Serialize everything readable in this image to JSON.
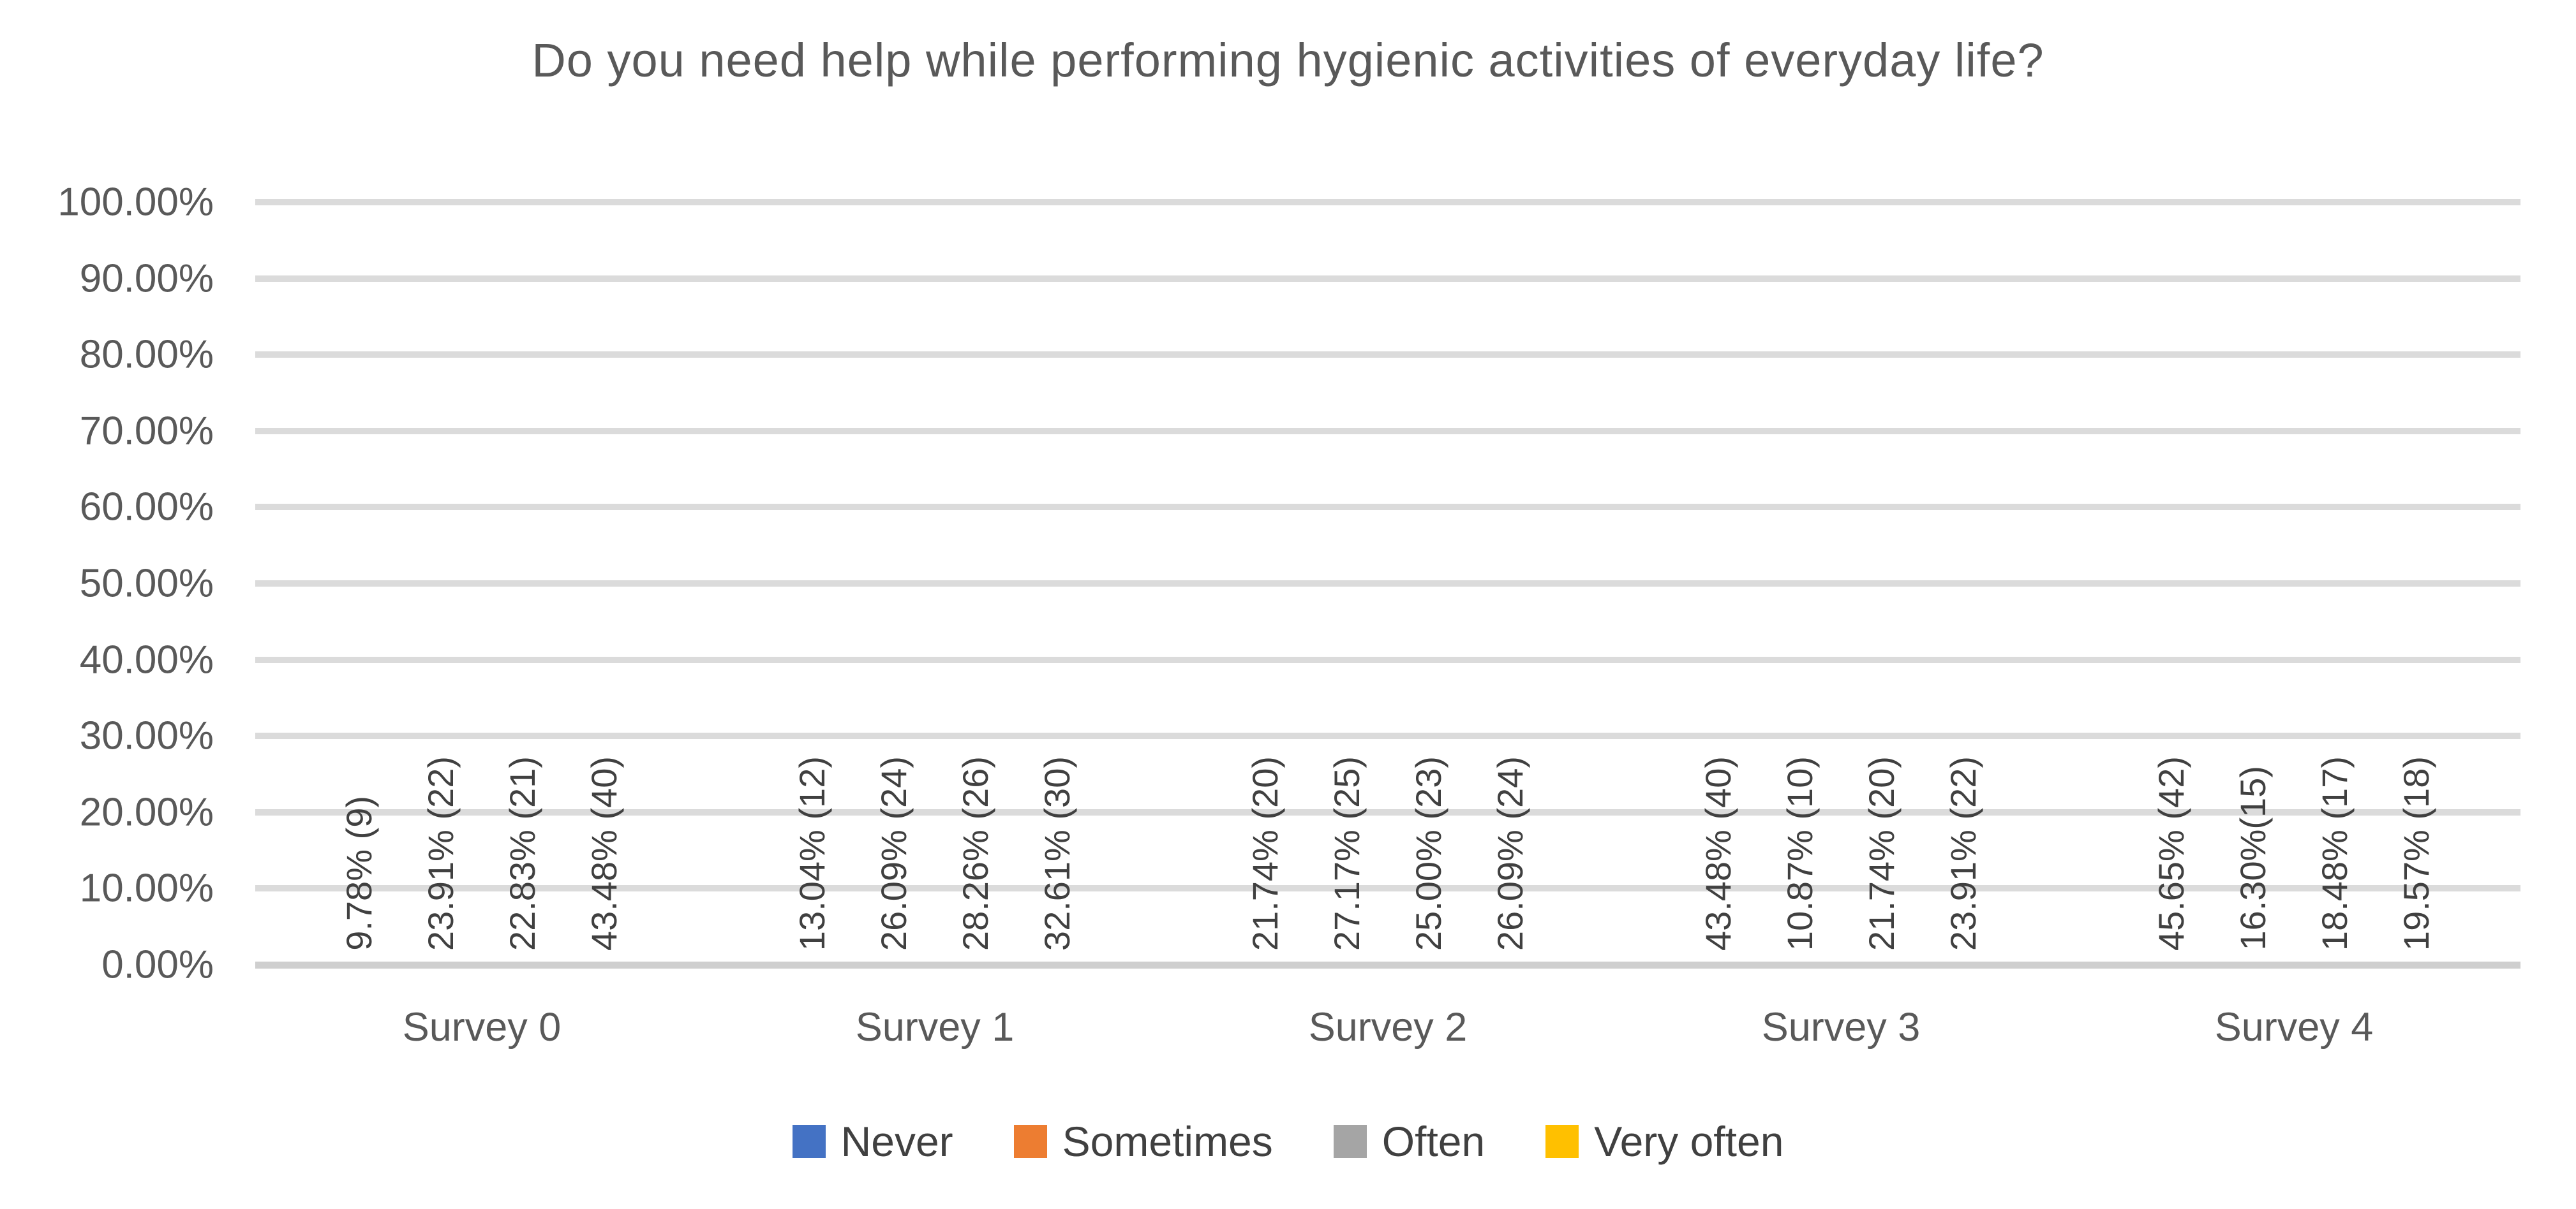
{
  "title": "Do you need help while performing hygienic activities of everyday life?",
  "chart_data": {
    "type": "bar",
    "title": "Do you need help while performing hygienic activities of everyday life?",
    "categories": [
      "Survey 0",
      "Survey 1",
      "Survey 2",
      "Survey 3",
      "Survey 4"
    ],
    "series": [
      {
        "name": "Never",
        "color": "#4472C4",
        "values": [
          9.78,
          13.04,
          21.74,
          43.48,
          45.65
        ],
        "labels": [
          "9.78% (9)",
          "13.04% (12)",
          "21.74% (20)",
          "43.48% (40)",
          "45.65% (42)"
        ]
      },
      {
        "name": "Sometimes",
        "color": "#ED7D31",
        "values": [
          23.91,
          26.09,
          27.17,
          10.87,
          16.3
        ],
        "labels": [
          "23.91% (22)",
          "26.09% (24)",
          "27.17% (25)",
          "10.87% (10)",
          "16.30%(15)"
        ]
      },
      {
        "name": "Often",
        "color": "#A5A5A5",
        "values": [
          22.83,
          28.26,
          25.0,
          21.74,
          18.48
        ],
        "labels": [
          "22.83% (21)",
          "28.26% (26)",
          "25.00% (23)",
          "21.74% (20)",
          "18.48% (17)"
        ]
      },
      {
        "name": "Very often",
        "color": "#FFC000",
        "values": [
          43.48,
          32.61,
          26.09,
          23.91,
          19.57
        ],
        "labels": [
          "43.48% (40)",
          "32.61% (30)",
          "26.09% (24)",
          "23.91% (22)",
          "19.57% (18)"
        ]
      }
    ],
    "y_ticks": [
      "100.00%",
      "90.00%",
      "80.00%",
      "70.00%",
      "60.00%",
      "50.00%",
      "40.00%",
      "30.00%",
      "20.00%",
      "10.00%",
      "0.00%"
    ],
    "ylim": [
      0,
      100
    ],
    "xlabel": "",
    "ylabel": "",
    "grid": true,
    "legend_position": "bottom",
    "label_rotation_degrees": 90
  },
  "colors": {
    "gridline": "#DBDBDB",
    "axis_line": "#CFCFCF",
    "title_text": "#595959",
    "tick_text": "#595959",
    "data_label_text": "#404040",
    "legend_text": "#404040",
    "background": "#FFFFFF"
  }
}
